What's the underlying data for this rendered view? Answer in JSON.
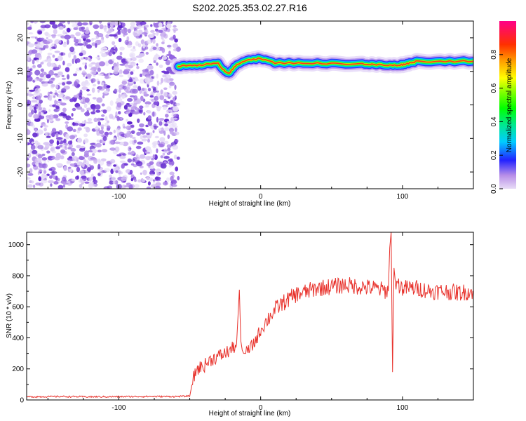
{
  "title": "S202.2025.353.02.27.R16",
  "chart_data": [
    {
      "type": "heatmap",
      "name": "spectrogram",
      "xlabel": "Height of straight line (km)",
      "ylabel": "Frequency (Hz)",
      "xlim": [
        -165,
        150
      ],
      "ylim": [
        -25,
        25
      ],
      "xticks": [
        "-100",
        "0",
        "100"
      ],
      "xtick_values": [
        -100,
        0,
        100
      ],
      "yticks": [
        "20",
        "10",
        "0",
        "-10",
        "-20"
      ],
      "ytick_values": [
        20,
        10,
        0,
        -10,
        -20
      ],
      "noise_region_x": [
        -165,
        -58
      ],
      "signal_band": {
        "x": [
          -58,
          -50,
          -40,
          -30,
          -25,
          -22,
          -18,
          -10,
          0,
          10,
          30,
          50,
          70,
          80,
          90,
          95,
          100,
          105,
          110,
          130,
          150
        ],
        "freq": [
          11.5,
          11.8,
          12.0,
          12.3,
          10.0,
          9.5,
          11.5,
          13.5,
          13.8,
          12.5,
          12.5,
          12.3,
          12.3,
          12.0,
          11.8,
          11.8,
          12.0,
          12.5,
          13.0,
          13.0,
          13.0
        ]
      },
      "colorbar": {
        "label": "Normalized spectral amplitude",
        "range": [
          0,
          1
        ],
        "ticks": [
          "0.0",
          "0.2",
          "0.4",
          "0.6",
          "0.8"
        ],
        "tick_values": [
          0,
          0.2,
          0.4,
          0.6,
          0.8
        ]
      }
    },
    {
      "type": "line",
      "name": "snr",
      "xlabel": "Height of straight line (km)",
      "ylabel": "SNR (10 * v/v)",
      "xlim": [
        -165,
        150
      ],
      "ylim": [
        0,
        1080
      ],
      "xticks": [
        "-100",
        "0",
        "100"
      ],
      "xtick_values": [
        -100,
        0,
        100
      ],
      "yticks": [
        "0",
        "200",
        "400",
        "600",
        "800",
        "1000"
      ],
      "ytick_values": [
        0,
        200,
        400,
        600,
        800,
        1000
      ],
      "color": "#e8322c",
      "series": {
        "x": [
          -165,
          -140,
          -120,
          -100,
          -80,
          -60,
          -50,
          -48,
          -45,
          -40,
          -35,
          -30,
          -25,
          -20,
          -17,
          -15,
          -14,
          -13,
          -12,
          -10,
          -5,
          0,
          5,
          10,
          15,
          20,
          25,
          30,
          40,
          50,
          60,
          70,
          80,
          90,
          91,
          92,
          93,
          94,
          95,
          100,
          110,
          120,
          130,
          140,
          150
        ],
        "y": [
          20,
          22,
          20,
          21,
          22,
          22,
          25,
          120,
          200,
          220,
          260,
          280,
          300,
          330,
          360,
          710,
          380,
          320,
          300,
          300,
          360,
          450,
          520,
          580,
          620,
          650,
          680,
          690,
          720,
          730,
          740,
          730,
          720,
          700,
          980,
          1080,
          180,
          850,
          760,
          720,
          720,
          700,
          700,
          690,
          700
        ]
      }
    }
  ]
}
